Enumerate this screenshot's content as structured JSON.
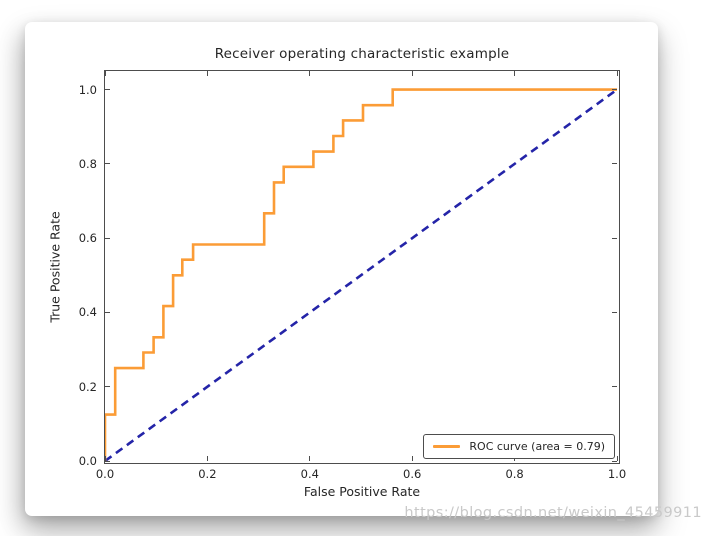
{
  "page": {
    "watermark": "https://blog.csdn.net/weixin_45459911"
  },
  "chart_data": {
    "type": "line",
    "title": "Receiver operating characteristic example",
    "xlabel": "False Positive Rate",
    "ylabel": "True Positive Rate",
    "xlim": [
      0.0,
      1.0
    ],
    "ylim": [
      0.0,
      1.05
    ],
    "x_ticks": [
      "0.0",
      "0.2",
      "0.4",
      "0.6",
      "0.8",
      "1.0"
    ],
    "y_ticks": [
      "0.0",
      "0.2",
      "0.4",
      "0.6",
      "0.8",
      "1.0"
    ],
    "grid": false,
    "frame_color": "#4d4d4d",
    "legend": {
      "position": "lower right",
      "entries": [
        {
          "label": "ROC curve (area = 0.79)",
          "color": "#fb9c36",
          "style": "solid"
        }
      ]
    },
    "auc": 0.79,
    "series": [
      {
        "name": "ROC curve",
        "draw": "step",
        "color": "#fb9c36",
        "line_width": 2.6,
        "dash": null,
        "points": [
          [
            0.0,
            0.0
          ],
          [
            0.0,
            0.125
          ],
          [
            0.02,
            0.125
          ],
          [
            0.02,
            0.25
          ],
          [
            0.075,
            0.25
          ],
          [
            0.075,
            0.292
          ],
          [
            0.095,
            0.292
          ],
          [
            0.095,
            0.333
          ],
          [
            0.114,
            0.333
          ],
          [
            0.114,
            0.417
          ],
          [
            0.133,
            0.417
          ],
          [
            0.133,
            0.5
          ],
          [
            0.151,
            0.5
          ],
          [
            0.151,
            0.542
          ],
          [
            0.172,
            0.542
          ],
          [
            0.172,
            0.583
          ],
          [
            0.311,
            0.583
          ],
          [
            0.311,
            0.667
          ],
          [
            0.33,
            0.667
          ],
          [
            0.33,
            0.75
          ],
          [
            0.349,
            0.75
          ],
          [
            0.349,
            0.792
          ],
          [
            0.407,
            0.792
          ],
          [
            0.407,
            0.833
          ],
          [
            0.446,
            0.833
          ],
          [
            0.446,
            0.875
          ],
          [
            0.465,
            0.875
          ],
          [
            0.465,
            0.917
          ],
          [
            0.504,
            0.917
          ],
          [
            0.504,
            0.958
          ],
          [
            0.562,
            0.958
          ],
          [
            0.562,
            1.0
          ],
          [
            1.0,
            1.0
          ]
        ]
      },
      {
        "name": "chance-diagonal",
        "draw": "line",
        "color": "#2424a8",
        "line_width": 2.6,
        "dash": "8 5.5",
        "points": [
          [
            0.0,
            0.0
          ],
          [
            1.0,
            1.0
          ]
        ]
      }
    ]
  }
}
